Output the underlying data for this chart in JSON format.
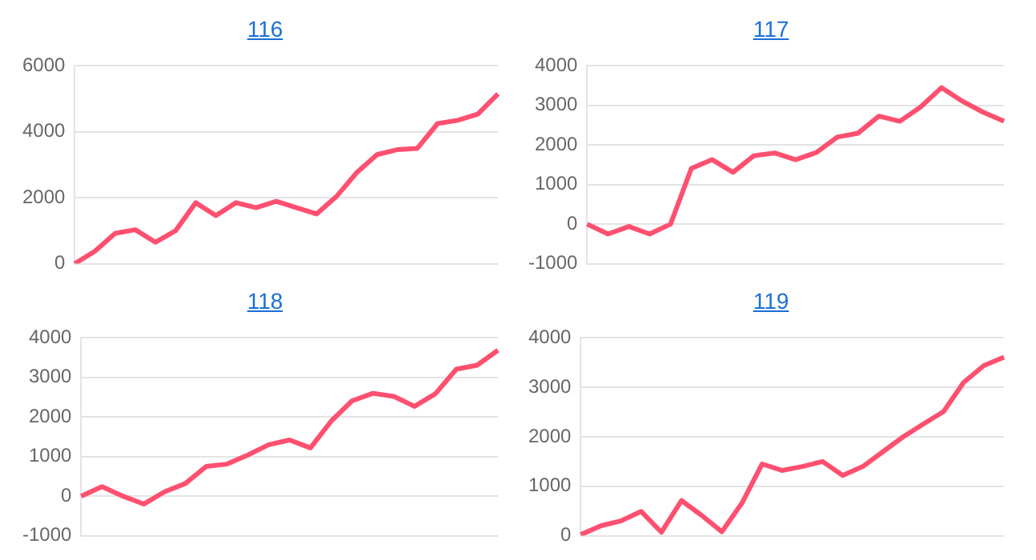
{
  "chart_data": [
    {
      "type": "line",
      "title": "116",
      "categories": [
        null,
        null,
        null,
        null,
        null,
        null,
        null,
        null,
        null,
        null,
        null,
        null,
        null,
        null,
        null,
        null,
        null,
        null,
        null,
        null,
        null,
        null
      ],
      "series": [
        {
          "color": "#ff5070",
          "values": [
            0,
            380,
            920,
            1030,
            650,
            1000,
            1850,
            1460,
            1850,
            1700,
            1890,
            1700,
            1510,
            2050,
            2770,
            3310,
            3460,
            3500,
            4250,
            4350,
            4540,
            5150
          ]
        }
      ],
      "ylim": [
        0,
        6000
      ],
      "yticks": [
        0,
        2000,
        4000,
        6000
      ],
      "grid": "y",
      "tick_labels": "y"
    },
    {
      "type": "line",
      "title": "117",
      "categories": [
        null,
        null,
        null,
        null,
        null,
        null,
        null,
        null,
        null,
        null,
        null,
        null,
        null,
        null,
        null,
        null,
        null,
        null,
        null,
        null,
        null
      ],
      "series": [
        {
          "color": "#ff5070",
          "values": [
            0,
            -250,
            -60,
            -250,
            0,
            1410,
            1630,
            1310,
            1730,
            1800,
            1630,
            1810,
            2200,
            2300,
            2730,
            2600,
            2960,
            3450,
            3110,
            2830,
            2600
          ]
        }
      ],
      "ylim": [
        -1000,
        4000
      ],
      "yticks": [
        -1000,
        0,
        1000,
        2000,
        3000,
        4000
      ],
      "grid": "y",
      "tick_labels": "y"
    },
    {
      "type": "line",
      "title": "118",
      "categories": [
        null,
        null,
        null,
        null,
        null,
        null,
        null,
        null,
        null,
        null,
        null,
        null,
        null,
        null,
        null,
        null,
        null,
        null,
        null,
        null,
        null
      ],
      "series": [
        {
          "color": "#ff5070",
          "values": [
            0,
            240,
            0,
            -200,
            110,
            320,
            750,
            810,
            1040,
            1300,
            1420,
            1220,
            1900,
            2410,
            2600,
            2520,
            2270,
            2590,
            3210,
            3310,
            3690
          ]
        }
      ],
      "ylim": [
        -1000,
        4000
      ],
      "yticks": [
        -1000,
        0,
        1000,
        2000,
        3000,
        4000
      ],
      "grid": "y",
      "tick_labels": "y"
    },
    {
      "type": "line",
      "title": "119",
      "categories": [
        null,
        null,
        null,
        null,
        null,
        null,
        null,
        null,
        null,
        null,
        null,
        null,
        null,
        null,
        null,
        null,
        null,
        null,
        null,
        null,
        null,
        null
      ],
      "series": [
        {
          "color": "#ff5070",
          "values": [
            20,
            200,
            300,
            490,
            70,
            710,
            410,
            80,
            660,
            1450,
            1320,
            1400,
            1500,
            1220,
            1400,
            1700,
            2000,
            2260,
            2510,
            3100,
            3440,
            3610
          ]
        }
      ],
      "ylim": [
        0,
        4000
      ],
      "yticks": [
        0,
        1000,
        2000,
        3000,
        4000
      ],
      "grid": "y",
      "tick_labels": "y"
    }
  ]
}
